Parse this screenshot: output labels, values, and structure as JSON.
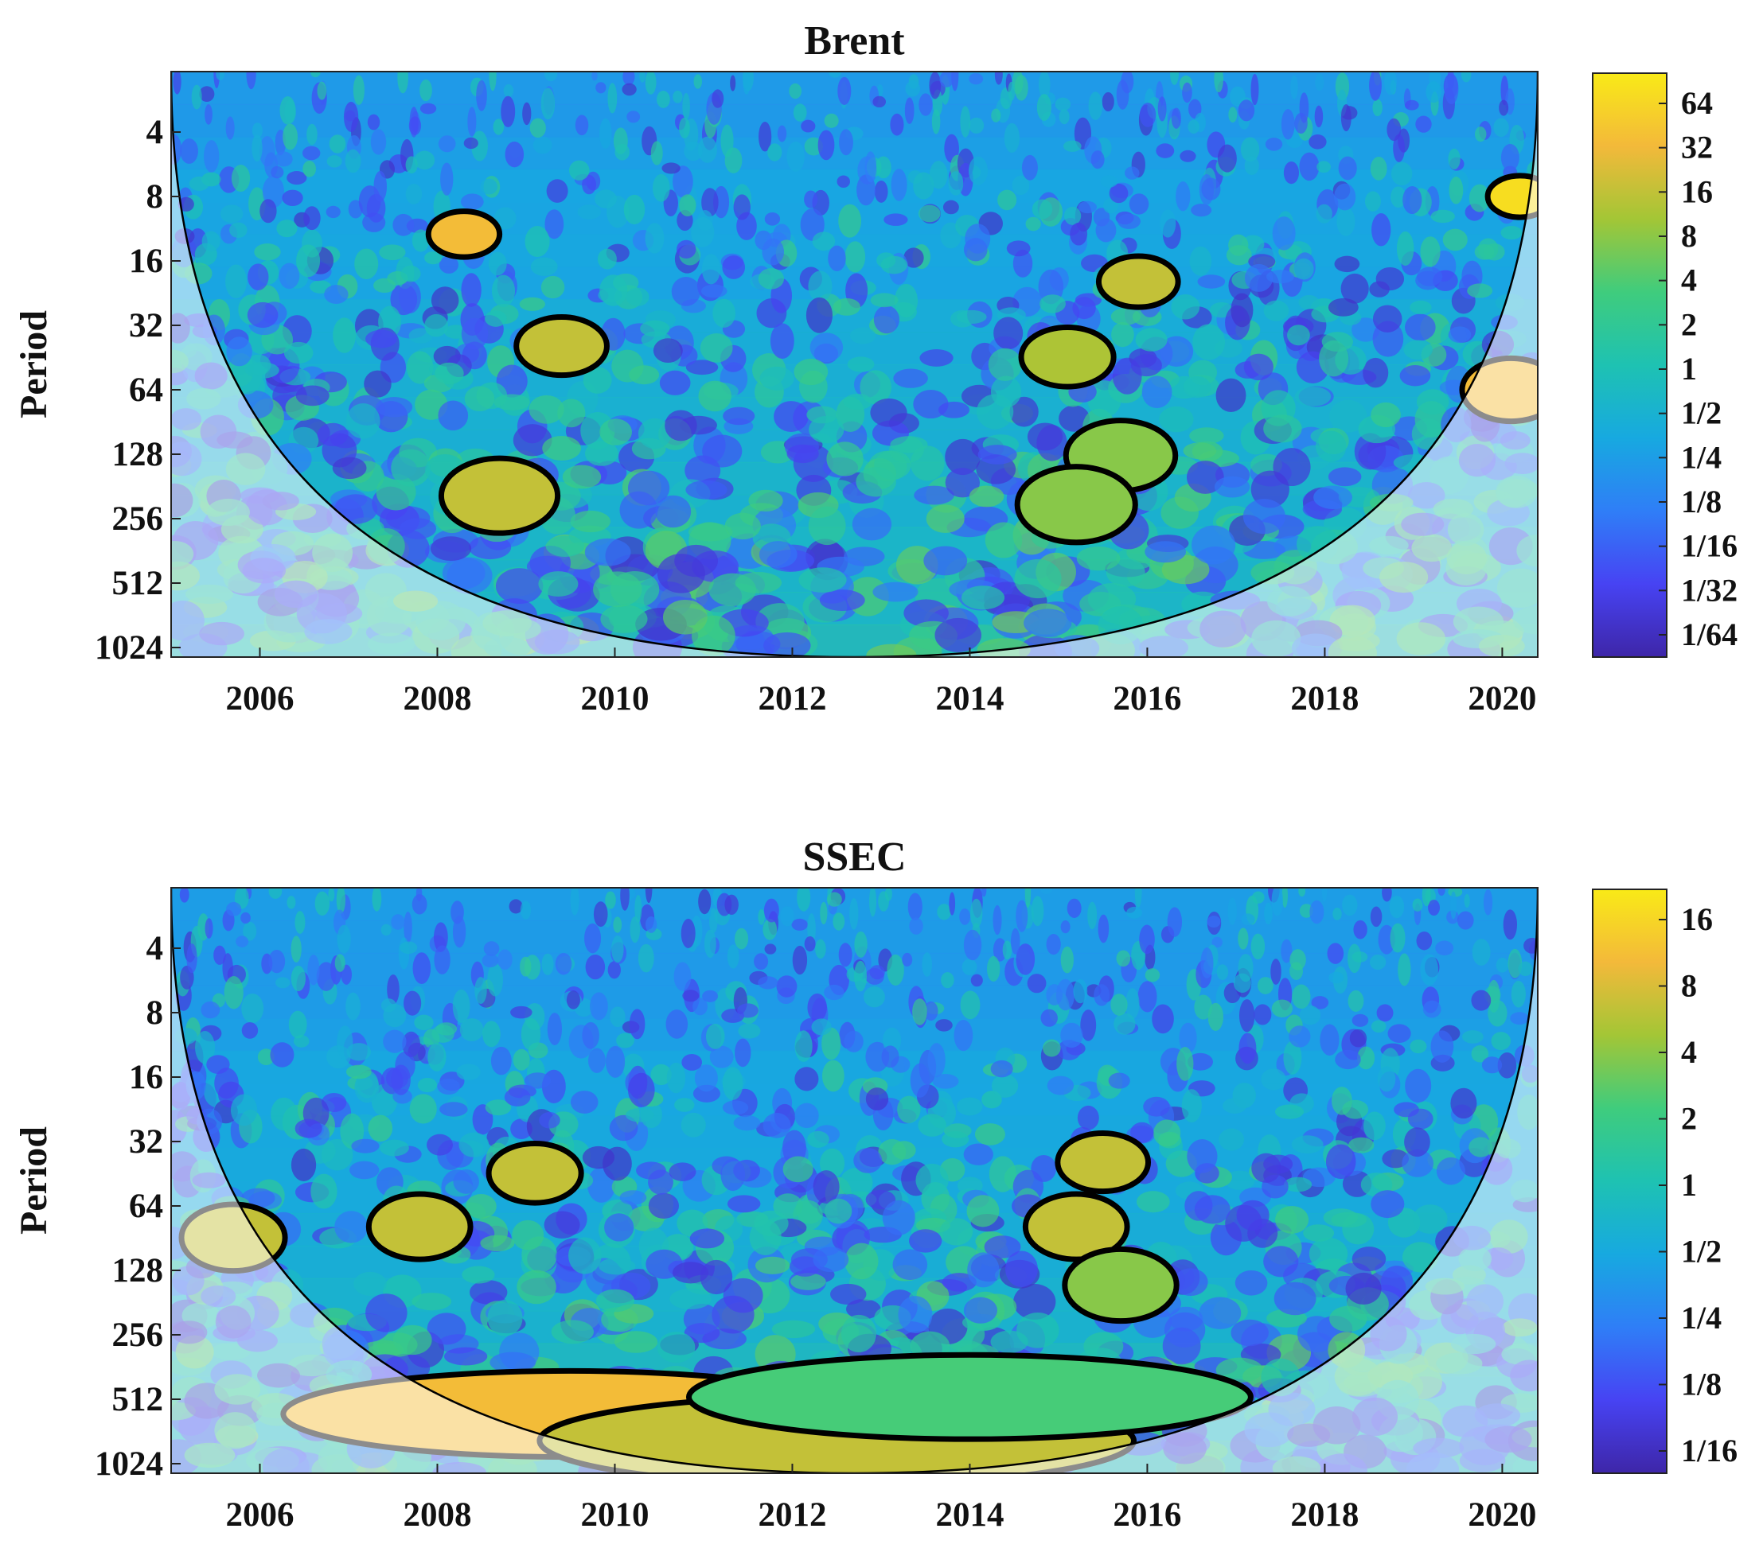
{
  "chart_data": [
    {
      "type": "heatmap",
      "title": "Brent",
      "ylabel": "Period",
      "xlabel": "",
      "xlim": [
        2005.0,
        2020.4
      ],
      "x_ticks": [
        "2006",
        "2008",
        "2010",
        "2012",
        "2014",
        "2016",
        "2018",
        "2020"
      ],
      "y_ticks": [
        "4",
        "8",
        "16",
        "32",
        "64",
        "128",
        "256",
        "512",
        "1024"
      ],
      "colorbar_ticks": [
        "64",
        "32",
        "16",
        "8",
        "4",
        "2",
        "1",
        "1/2",
        "1/4",
        "1/8",
        "1/16",
        "1/32",
        "1/64"
      ],
      "colormap": [
        "#3e26a8",
        "#4743f3",
        "#2f7ef7",
        "#17a9e0",
        "#1ec2b2",
        "#3fcc7d",
        "#a3c636",
        "#f3b93a",
        "#f9ea17"
      ],
      "contour_color": "#000000",
      "coi_line_color": "#000000",
      "regions": [
        {
          "x": 2008.3,
          "period": 12,
          "power": 16
        },
        {
          "x": 2008.7,
          "period": 200,
          "power": 8
        },
        {
          "x": 2009.4,
          "period": 40,
          "power": 8
        },
        {
          "x": 2015.1,
          "period": 45,
          "power": 6
        },
        {
          "x": 2015.9,
          "period": 20,
          "power": 8
        },
        {
          "x": 2015.7,
          "period": 130,
          "power": 4
        },
        {
          "x": 2015.2,
          "period": 220,
          "power": 4
        },
        {
          "x": 2020.2,
          "period": 8,
          "power": 32
        },
        {
          "x": 2020.1,
          "period": 64,
          "power": 16
        }
      ]
    },
    {
      "type": "heatmap",
      "title": "SSEC",
      "ylabel": "Period",
      "xlabel": "",
      "xlim": [
        2005.0,
        2020.4
      ],
      "x_ticks": [
        "2006",
        "2008",
        "2010",
        "2012",
        "2014",
        "2016",
        "2018",
        "2020"
      ],
      "y_ticks": [
        "4",
        "8",
        "16",
        "32",
        "64",
        "128",
        "256",
        "512",
        "1024"
      ],
      "colorbar_ticks": [
        "16",
        "8",
        "4",
        "2",
        "1",
        "1/2",
        "1/4",
        "1/8",
        "1/16"
      ],
      "colormap": [
        "#3e26a8",
        "#4743f3",
        "#2f7ef7",
        "#17a9e0",
        "#1ec2b2",
        "#3fcc7d",
        "#a3c636",
        "#f3b93a",
        "#f9ea17"
      ],
      "contour_color": "#000000",
      "coi_line_color": "#000000",
      "regions": [
        {
          "x": 2005.7,
          "period": 90,
          "power": 8
        },
        {
          "x": 2007.8,
          "period": 80,
          "power": 8
        },
        {
          "x": 2009.1,
          "period": 45,
          "power": 8
        },
        {
          "x": 2015.5,
          "period": 40,
          "power": 8
        },
        {
          "x": 2015.2,
          "period": 80,
          "power": 8
        },
        {
          "x": 2015.7,
          "period": 150,
          "power": 4
        },
        {
          "x": 2009.5,
          "period": 600,
          "power": 16
        },
        {
          "x": 2012.5,
          "period": 800,
          "power": 8
        },
        {
          "x": 2014.0,
          "period": 500,
          "power": 2
        }
      ]
    }
  ]
}
